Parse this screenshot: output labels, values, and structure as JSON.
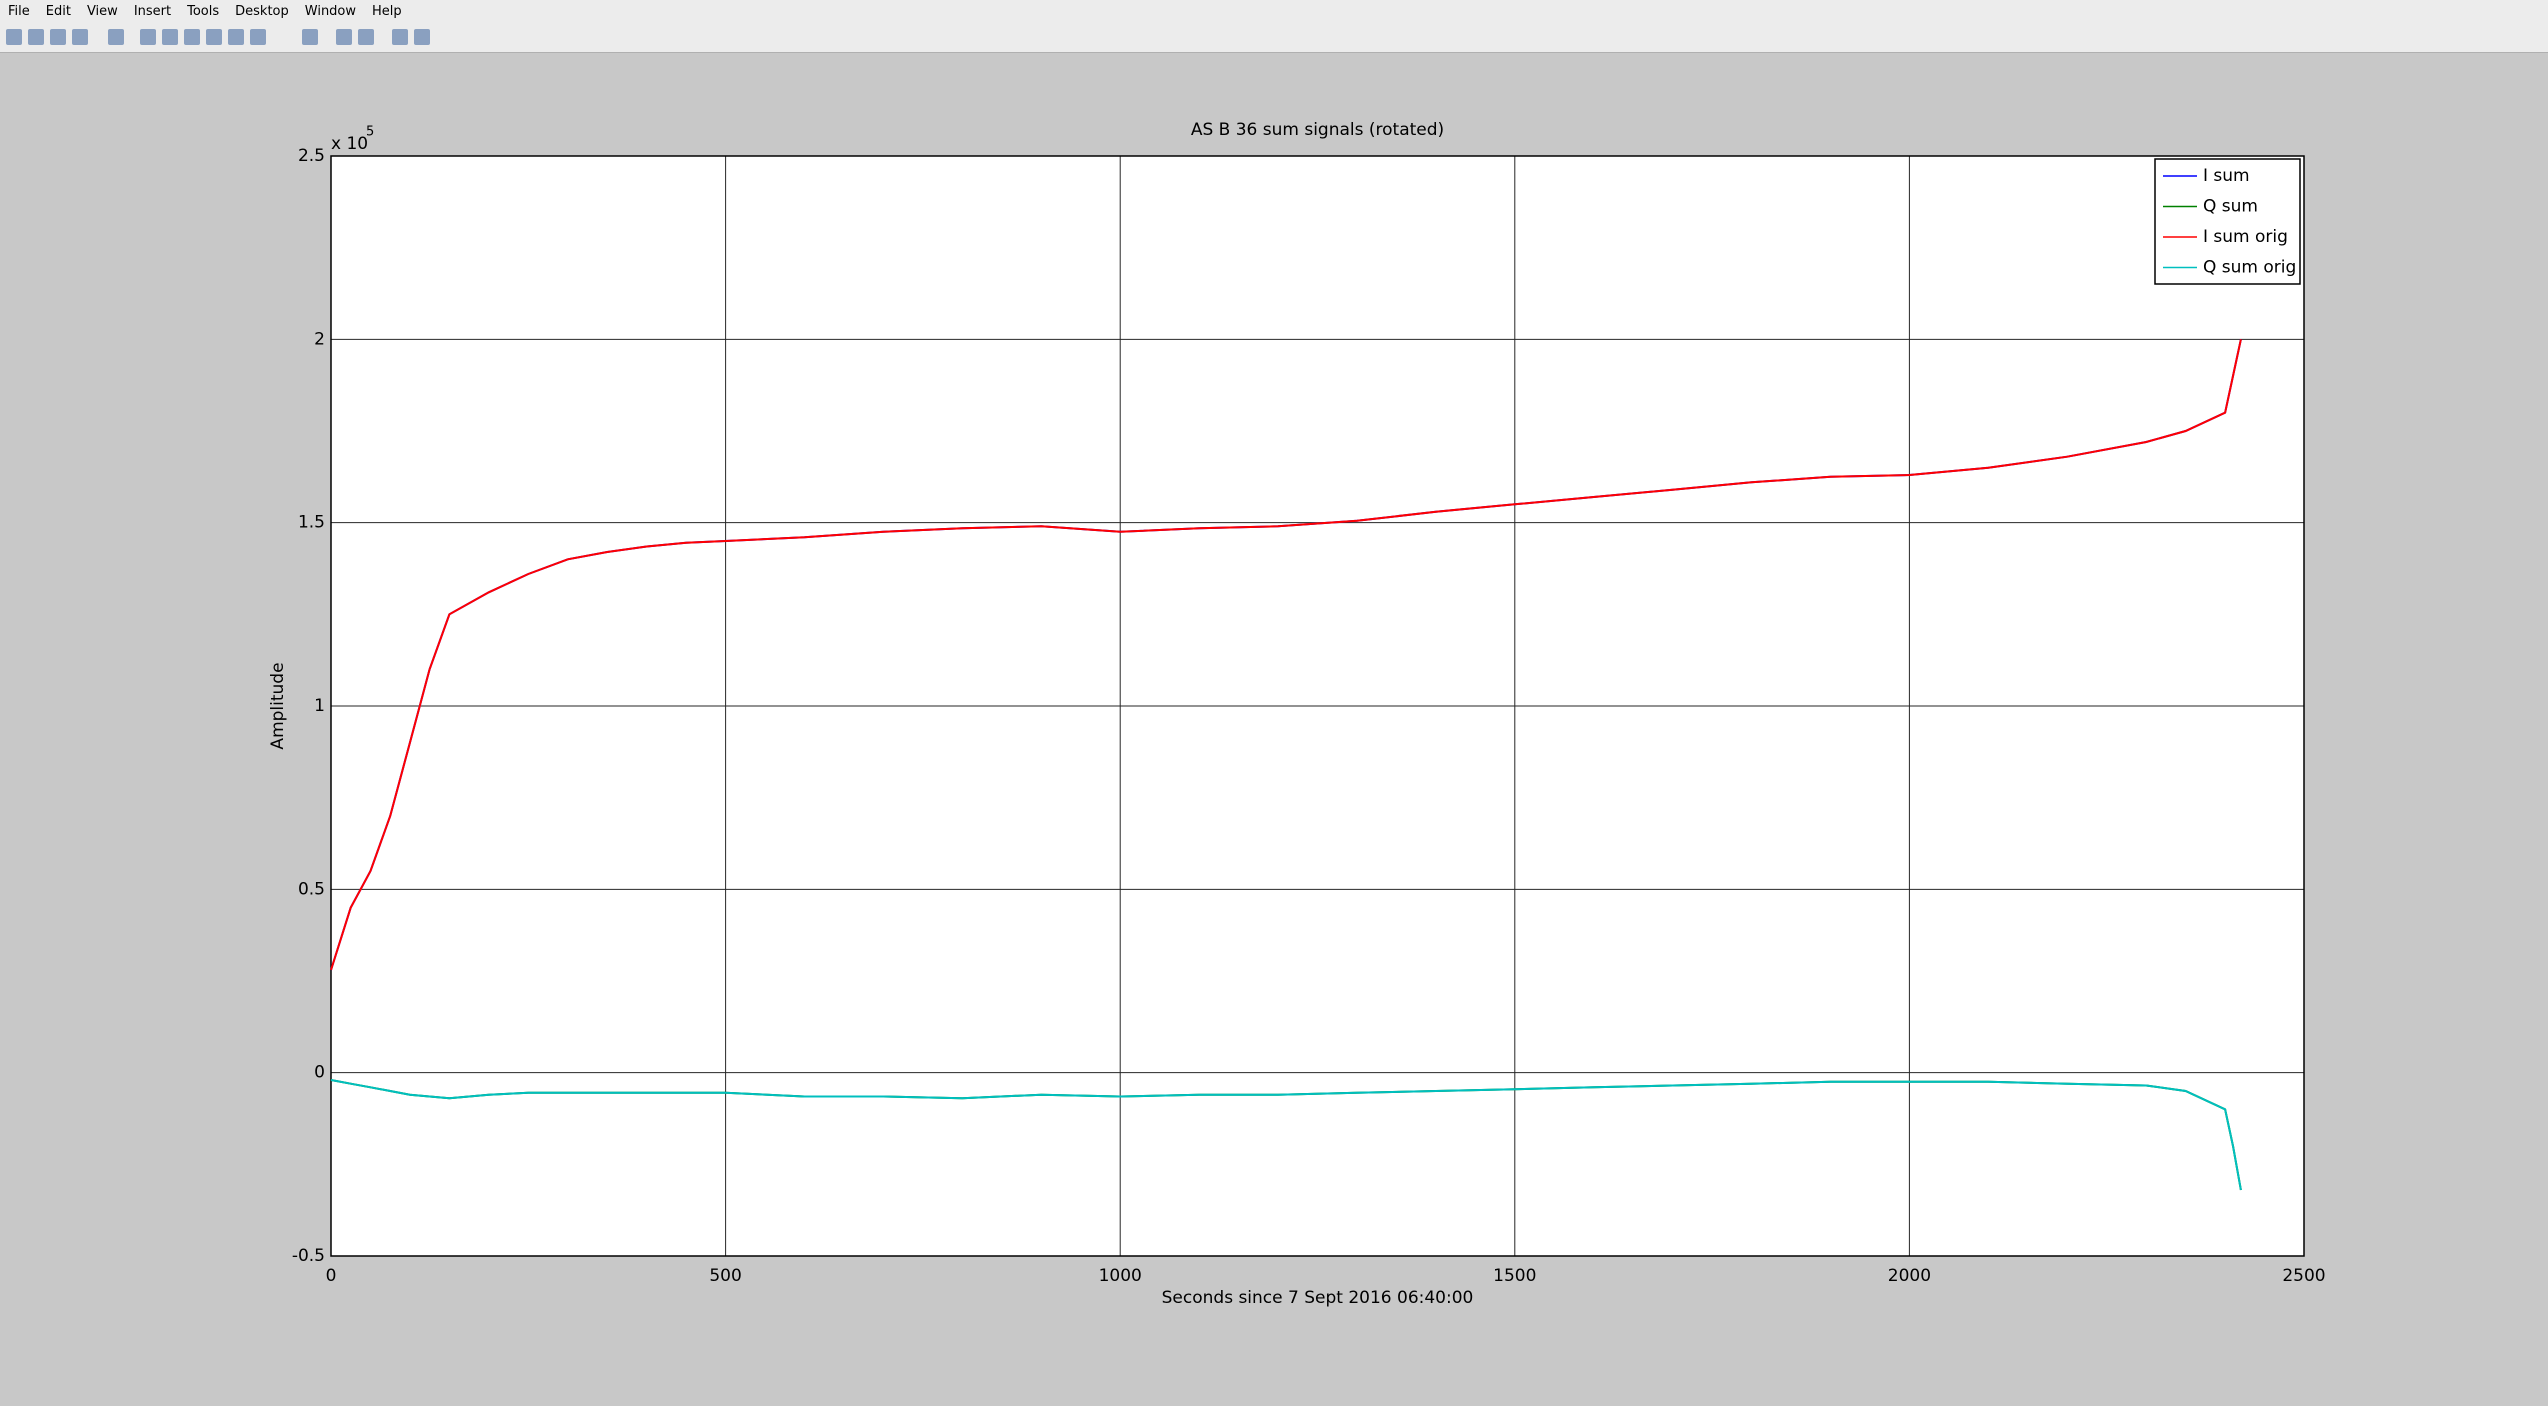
{
  "menu": [
    "File",
    "Edit",
    "View",
    "Insert",
    "Tools",
    "Desktop",
    "Window",
    "Help"
  ],
  "chart_data": {
    "type": "line",
    "title": "AS B 36 sum signals (rotated)",
    "xlabel": "Seconds since 7 Sept 2016 06:40:00",
    "ylabel": "Amplitude",
    "y_exponent": {
      "base": "x 10",
      "power": "5"
    },
    "x": [
      0,
      25,
      50,
      75,
      100,
      125,
      150,
      200,
      250,
      300,
      350,
      400,
      450,
      500,
      600,
      700,
      800,
      900,
      1000,
      1100,
      1200,
      1300,
      1400,
      1500,
      1600,
      1700,
      1800,
      1900,
      2000,
      2100,
      2200,
      2300,
      2350,
      2400,
      2410,
      2420
    ],
    "series": [
      {
        "name": "I sum",
        "color": "#0000ff",
        "values": [
          28000,
          45000,
          55000,
          70000,
          90000,
          110000,
          125000,
          131000,
          136000,
          140000,
          142000,
          143500,
          144500,
          145000,
          146000,
          147500,
          148500,
          149000,
          147500,
          148500,
          149000,
          150500,
          153000,
          155000,
          157000,
          159000,
          161000,
          162500,
          163000,
          165000,
          168000,
          172000,
          175000,
          180000,
          190000,
          200000
        ]
      },
      {
        "name": "Q sum",
        "color": "#008000",
        "values": [
          -2000,
          -3000,
          -4000,
          -5000,
          -6000,
          -6500,
          -7000,
          -6000,
          -5500,
          -5500,
          -5500,
          -5500,
          -5500,
          -5500,
          -6500,
          -6500,
          -7000,
          -6000,
          -6500,
          -6000,
          -6000,
          -5500,
          -5000,
          -4500,
          -4000,
          -3500,
          -3000,
          -2500,
          -2500,
          -2500,
          -3000,
          -3500,
          -5000,
          -10000,
          -20000,
          -32000
        ]
      },
      {
        "name": "I sum orig",
        "color": "#ff0000",
        "values": [
          28000,
          45000,
          55000,
          70000,
          90000,
          110000,
          125000,
          131000,
          136000,
          140000,
          142000,
          143500,
          144500,
          145000,
          146000,
          147500,
          148500,
          149000,
          147500,
          148500,
          149000,
          150500,
          153000,
          155000,
          157000,
          159000,
          161000,
          162500,
          163000,
          165000,
          168000,
          172000,
          175000,
          180000,
          190000,
          200000
        ]
      },
      {
        "name": "Q sum orig",
        "color": "#00bfbf",
        "values": [
          -2000,
          -3000,
          -4000,
          -5000,
          -6000,
          -6500,
          -7000,
          -6000,
          -5500,
          -5500,
          -5500,
          -5500,
          -5500,
          -5500,
          -6500,
          -6500,
          -7000,
          -6000,
          -6500,
          -6000,
          -6000,
          -5500,
          -5000,
          -4500,
          -4000,
          -3500,
          -3000,
          -2500,
          -2500,
          -2500,
          -3000,
          -3500,
          -5000,
          -10000,
          -20000,
          -32000
        ]
      }
    ],
    "xlim": [
      0,
      2500
    ],
    "xticks": [
      0,
      500,
      1000,
      1500,
      2000,
      2500
    ],
    "ylim": [
      -50000,
      250000
    ],
    "yticks": [
      {
        "value": -50000,
        "label": "-0.5"
      },
      0,
      {
        "value": 50000,
        "label": "0.5"
      },
      {
        "value": 100000,
        "label": "1"
      },
      {
        "value": 150000,
        "label": "1.5"
      },
      {
        "value": 200000,
        "label": "2"
      },
      {
        "value": 250000,
        "label": "2.5"
      }
    ],
    "grid": true,
    "legend": "upper right"
  }
}
